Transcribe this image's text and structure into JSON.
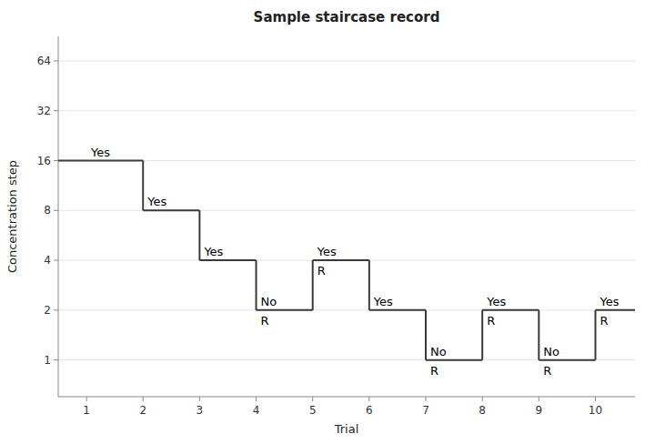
{
  "chart_data": {
    "type": "line",
    "line_style": "step",
    "title": "Sample staircase record",
    "x_label": "Trial",
    "y_label": "Concentration step",
    "x": [
      1,
      2,
      3,
      4,
      5,
      6,
      7,
      8,
      9,
      10
    ],
    "values": [
      16,
      8,
      4,
      2,
      4,
      2,
      1,
      2,
      1,
      2
    ],
    "color": "#3a3a3a",
    "log": "y",
    "xlim": [
      0.5,
      10.7
    ],
    "ylim": [
      0.6,
      90
    ],
    "xticks": [
      1,
      2,
      3,
      4,
      5,
      6,
      7,
      8,
      9,
      10
    ],
    "yticks": [
      1,
      2,
      4,
      8,
      16,
      32,
      64
    ],
    "annotations": [
      {
        "x": 1,
        "y": 16,
        "text": "Yes"
      },
      {
        "x": 2,
        "y": 8,
        "text": "Yes"
      },
      {
        "x": 3,
        "y": 4,
        "text": "Yes"
      },
      {
        "x": 4,
        "y": 2,
        "text": "No",
        "reversal_text": "R"
      },
      {
        "x": 5,
        "y": 4,
        "text": "Yes",
        "reversal_text": "R"
      },
      {
        "x": 6,
        "y": 2,
        "text": "Yes"
      },
      {
        "x": 7,
        "y": 1,
        "text": "No",
        "reversal_text": "R"
      },
      {
        "x": 8,
        "y": 2,
        "text": "Yes",
        "reversal_text": "R"
      },
      {
        "x": 9,
        "y": 1,
        "text": "No",
        "reversal_text": "R"
      },
      {
        "x": 10,
        "y": 2,
        "text": "Yes",
        "reversal_text": "R"
      }
    ]
  }
}
